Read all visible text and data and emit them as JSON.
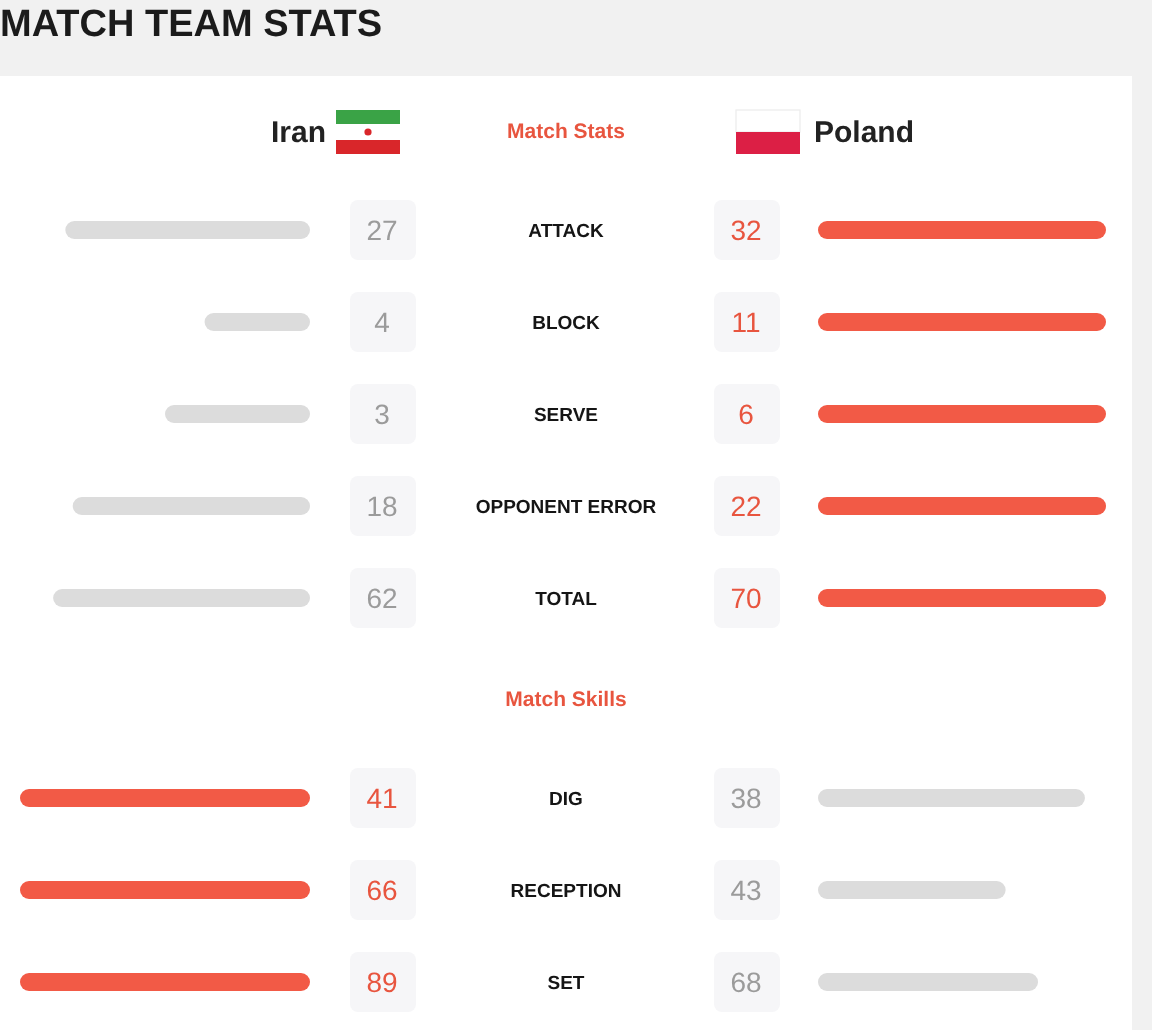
{
  "chart_data": [
    {
      "type": "other",
      "title": "MATCH TEAM STATS",
      "subtitle": "Match Stats",
      "annotations": [
        "Iran",
        "Poland"
      ]
    },
    {
      "type": "bar",
      "orientation": "horizontal",
      "categories": [
        "ATTACK"
      ],
      "values": [
        27
      ],
      "color": "#dcdcdc",
      "data_labels": true,
      "tick_labels": "y"
    },
    {
      "type": "bar",
      "orientation": "horizontal",
      "categories": [
        "ATTACK"
      ],
      "values": [
        32
      ],
      "color": "#f25a46",
      "data_labels": true,
      "tick_labels": false
    },
    {
      "type": "bar",
      "orientation": "horizontal",
      "categories": [
        "BLOCK"
      ],
      "values": [
        4
      ],
      "color": "#dcdcdc",
      "data_labels": true,
      "tick_labels": "y"
    },
    {
      "type": "bar",
      "orientation": "horizontal",
      "categories": [
        "BLOCK"
      ],
      "values": [
        11
      ],
      "color": "#f25a46",
      "data_labels": true,
      "tick_labels": false
    },
    {
      "type": "bar",
      "orientation": "horizontal",
      "categories": [
        "SERVE"
      ],
      "values": [
        3
      ],
      "color": "#dcdcdc",
      "data_labels": true,
      "tick_labels": "y"
    },
    {
      "type": "bar",
      "orientation": "horizontal",
      "categories": [
        "SERVE"
      ],
      "values": [
        6
      ],
      "color": "#f25a46",
      "data_labels": true,
      "tick_labels": false
    },
    {
      "type": "bar",
      "orientation": "horizontal",
      "categories": [
        "OPPONENT ERROR"
      ],
      "values": [
        18
      ],
      "color": "#dcdcdc",
      "data_labels": true,
      "tick_labels": "y"
    },
    {
      "type": "bar",
      "orientation": "horizontal",
      "categories": [
        "OPPONENT ERROR"
      ],
      "values": [
        22
      ],
      "color": "#f25a46",
      "data_labels": true,
      "tick_labels": false
    },
    {
      "type": "bar",
      "orientation": "horizontal",
      "categories": [
        "TOTAL"
      ],
      "values": [
        62
      ],
      "color": "#dcdcdc",
      "data_labels": true,
      "tick_labels": "y"
    },
    {
      "type": "bar",
      "orientation": "horizontal",
      "categories": [
        "TOTAL"
      ],
      "values": [
        70
      ],
      "color": "#f25a46",
      "data_labels": true,
      "tick_labels": false
    },
    {
      "type": "other",
      "subtitle": "Match Skills"
    },
    {
      "type": "bar",
      "orientation": "horizontal",
      "categories": [
        "DIG"
      ],
      "values": [
        41
      ],
      "color": "#f25a46",
      "data_labels": true,
      "tick_labels": "y"
    },
    {
      "type": "bar",
      "orientation": "horizontal",
      "categories": [
        "DIG"
      ],
      "values": [
        38
      ],
      "color": "#dcdcdc",
      "data_labels": true,
      "tick_labels": false
    },
    {
      "type": "bar",
      "orientation": "horizontal",
      "categories": [
        "RECEPTION"
      ],
      "values": [
        66
      ],
      "color": "#f25a46",
      "data_labels": true,
      "tick_labels": "y"
    },
    {
      "type": "bar",
      "orientation": "horizontal",
      "categories": [
        "RECEPTION"
      ],
      "values": [
        43
      ],
      "color": "#dcdcdc",
      "data_labels": true,
      "tick_labels": false
    },
    {
      "type": "bar",
      "orientation": "horizontal",
      "categories": [
        "SET"
      ],
      "values": [
        89
      ],
      "color": "#f25a46",
      "data_labels": true,
      "tick_labels": "y"
    },
    {
      "type": "bar",
      "orientation": "horizontal",
      "categories": [
        "SET"
      ],
      "values": [
        68
      ],
      "color": "#dcdcdc",
      "data_labels": true,
      "tick_labels": false
    }
  ]
}
